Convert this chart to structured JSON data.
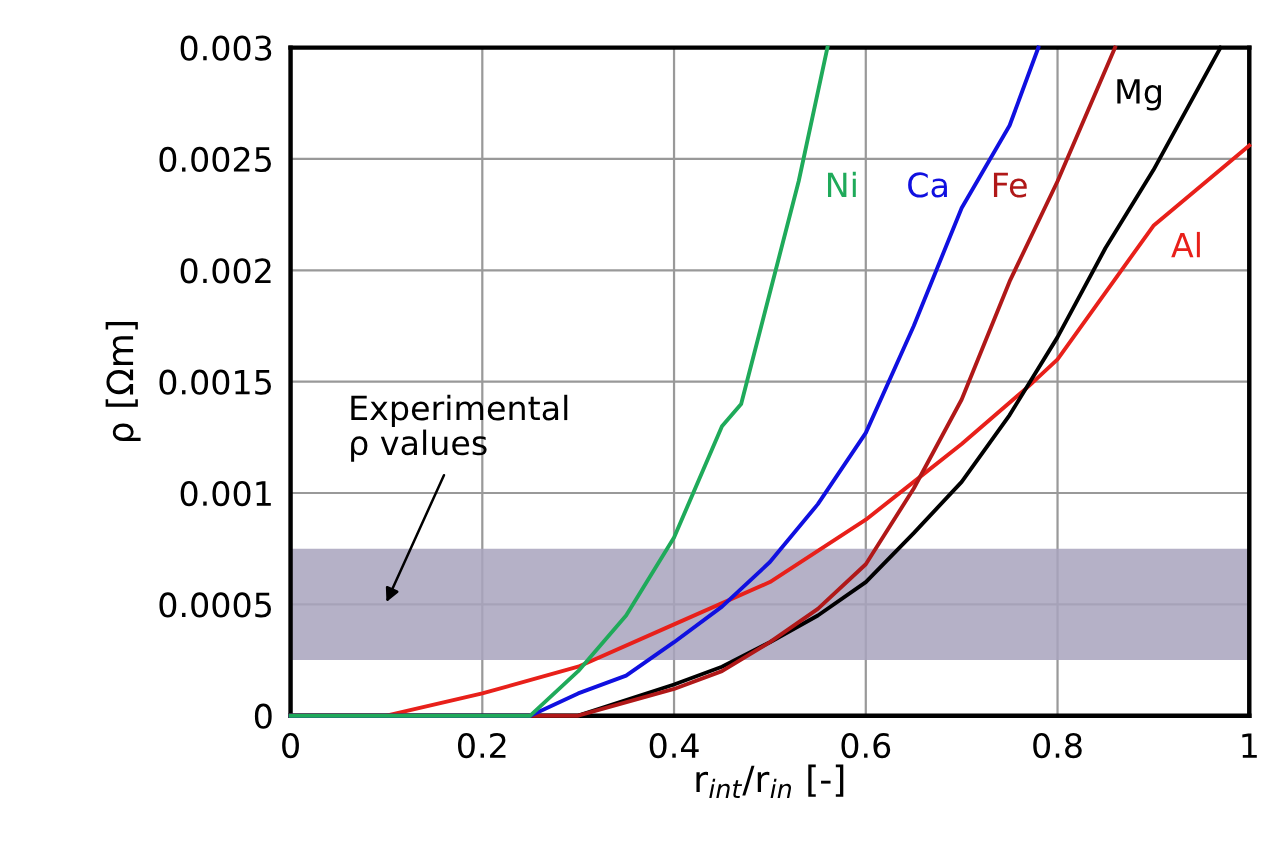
{
  "chart_data": {
    "type": "line",
    "xlabel": "r$_{int}$/r$_{in}$ [-]",
    "ylabel": "ρ [Ωm]",
    "xlim": [
      0,
      1
    ],
    "ylim": [
      0,
      0.003
    ],
    "xticks": [
      0,
      0.2,
      0.4,
      0.6,
      0.8,
      1
    ],
    "yticks": [
      0,
      0.0005,
      0.001,
      0.0015,
      0.002,
      0.0025,
      0.003
    ],
    "grid": true,
    "marker": "none",
    "line_style": "solid",
    "bands": [
      {
        "axis": "y",
        "from": 0.00025,
        "to": 0.00075,
        "color": "#a8a3bd"
      }
    ],
    "annotations": [
      "Experimental\nρ values"
    ],
    "series": [
      {
        "name": "Ni",
        "color": "#1faa5a",
        "x": [
          0,
          0.15,
          0.2,
          0.25,
          0.3,
          0.35,
          0.4,
          0.45,
          0.47,
          0.5,
          0.53,
          0.56
        ],
        "values": [
          0,
          0,
          0,
          0,
          0.0002,
          0.00045,
          0.0008,
          0.0013,
          0.0014,
          0.0019,
          0.0024,
          0.003
        ]
      },
      {
        "name": "Ca",
        "color": "#1010e0",
        "x": [
          0,
          0.2,
          0.25,
          0.3,
          0.35,
          0.4,
          0.45,
          0.5,
          0.55,
          0.6,
          0.65,
          0.7,
          0.75,
          0.78
        ],
        "values": [
          0,
          0,
          0,
          0.0001,
          0.00018,
          0.00033,
          0.00049,
          0.00069,
          0.00095,
          0.00127,
          0.00175,
          0.00228,
          0.00265,
          0.003
        ]
      },
      {
        "name": "Fe",
        "color": "#b01818",
        "x": [
          0,
          0.2,
          0.3,
          0.4,
          0.45,
          0.5,
          0.55,
          0.6,
          0.65,
          0.7,
          0.75,
          0.8,
          0.86
        ],
        "values": [
          0,
          0,
          0,
          0.00012,
          0.0002,
          0.00033,
          0.00048,
          0.00068,
          0.00102,
          0.00142,
          0.00195,
          0.0024,
          0.003
        ]
      },
      {
        "name": "Mg",
        "color": "#000000",
        "x": [
          0,
          0.2,
          0.3,
          0.4,
          0.45,
          0.5,
          0.55,
          0.6,
          0.65,
          0.7,
          0.75,
          0.8,
          0.85,
          0.9,
          0.97
        ],
        "values": [
          0,
          0,
          0,
          0.00014,
          0.00022,
          0.00033,
          0.00045,
          0.0006,
          0.00082,
          0.00105,
          0.00135,
          0.0017,
          0.0021,
          0.00245,
          0.003
        ]
      },
      {
        "name": "Al",
        "color": "#e8201a",
        "x": [
          0,
          0.1,
          0.2,
          0.3,
          0.4,
          0.5,
          0.6,
          0.65,
          0.7,
          0.77,
          0.8,
          0.9,
          1
        ],
        "values": [
          0,
          0,
          0.0001,
          0.00022,
          0.00041,
          0.0006,
          0.00088,
          0.00105,
          0.00122,
          0.00148,
          0.0016,
          0.0022,
          0.00256
        ]
      }
    ]
  }
}
